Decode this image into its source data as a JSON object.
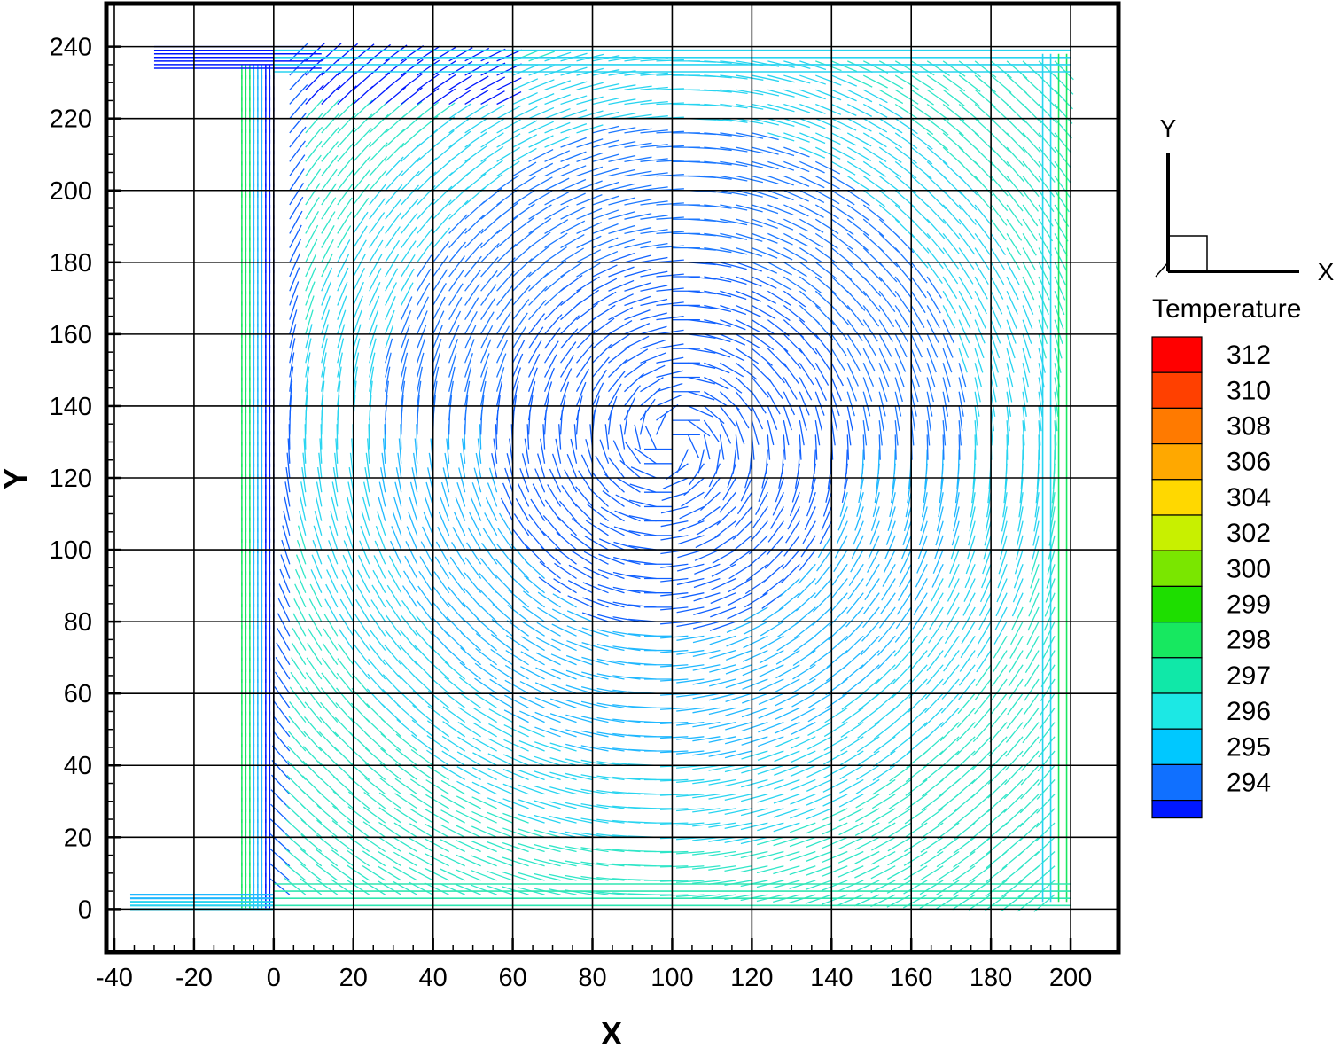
{
  "chart_data": {
    "type": "vector-field",
    "xlabel": "X",
    "ylabel": "Y",
    "xlim": [
      -42,
      212
    ],
    "ylim": [
      -12,
      252
    ],
    "x_ticks": [
      -40,
      -20,
      0,
      20,
      40,
      60,
      80,
      100,
      120,
      140,
      160,
      180,
      200
    ],
    "y_ticks": [
      0,
      20,
      40,
      60,
      80,
      100,
      120,
      140,
      160,
      180,
      200,
      220,
      240
    ],
    "grid": true,
    "field": {
      "domain_x": [
        0,
        200
      ],
      "domain_y": [
        0,
        240
      ],
      "inlet": {
        "x": [
          -30,
          0
        ],
        "y": [
          234,
          240
        ]
      },
      "outlet": {
        "x": [
          -36,
          0
        ],
        "y": [
          0,
          4
        ]
      },
      "wall_jet_x": [
        -8,
        0
      ]
    },
    "colorbar": {
      "title": "Temperature",
      "levels": [
        {
          "label": "312",
          "color": "#ff0000"
        },
        {
          "label": "310",
          "color": "#ff4000"
        },
        {
          "label": "308",
          "color": "#ff7a00"
        },
        {
          "label": "306",
          "color": "#ffa800"
        },
        {
          "label": "304",
          "color": "#ffd800"
        },
        {
          "label": "302",
          "color": "#c8f000"
        },
        {
          "label": "300",
          "color": "#7ae600"
        },
        {
          "label": "299",
          "color": "#1ede00"
        },
        {
          "label": "298",
          "color": "#17e860"
        },
        {
          "label": "297",
          "color": "#10e8a8"
        },
        {
          "label": "296",
          "color": "#1ce8e4"
        },
        {
          "label": "295",
          "color": "#00c8ff"
        },
        {
          "label": "294",
          "color": "#1070ff"
        },
        {
          "label": "",
          "color": "#0018ff"
        }
      ]
    },
    "axes_triad": {
      "x_label": "X",
      "y_label": "Y"
    }
  }
}
